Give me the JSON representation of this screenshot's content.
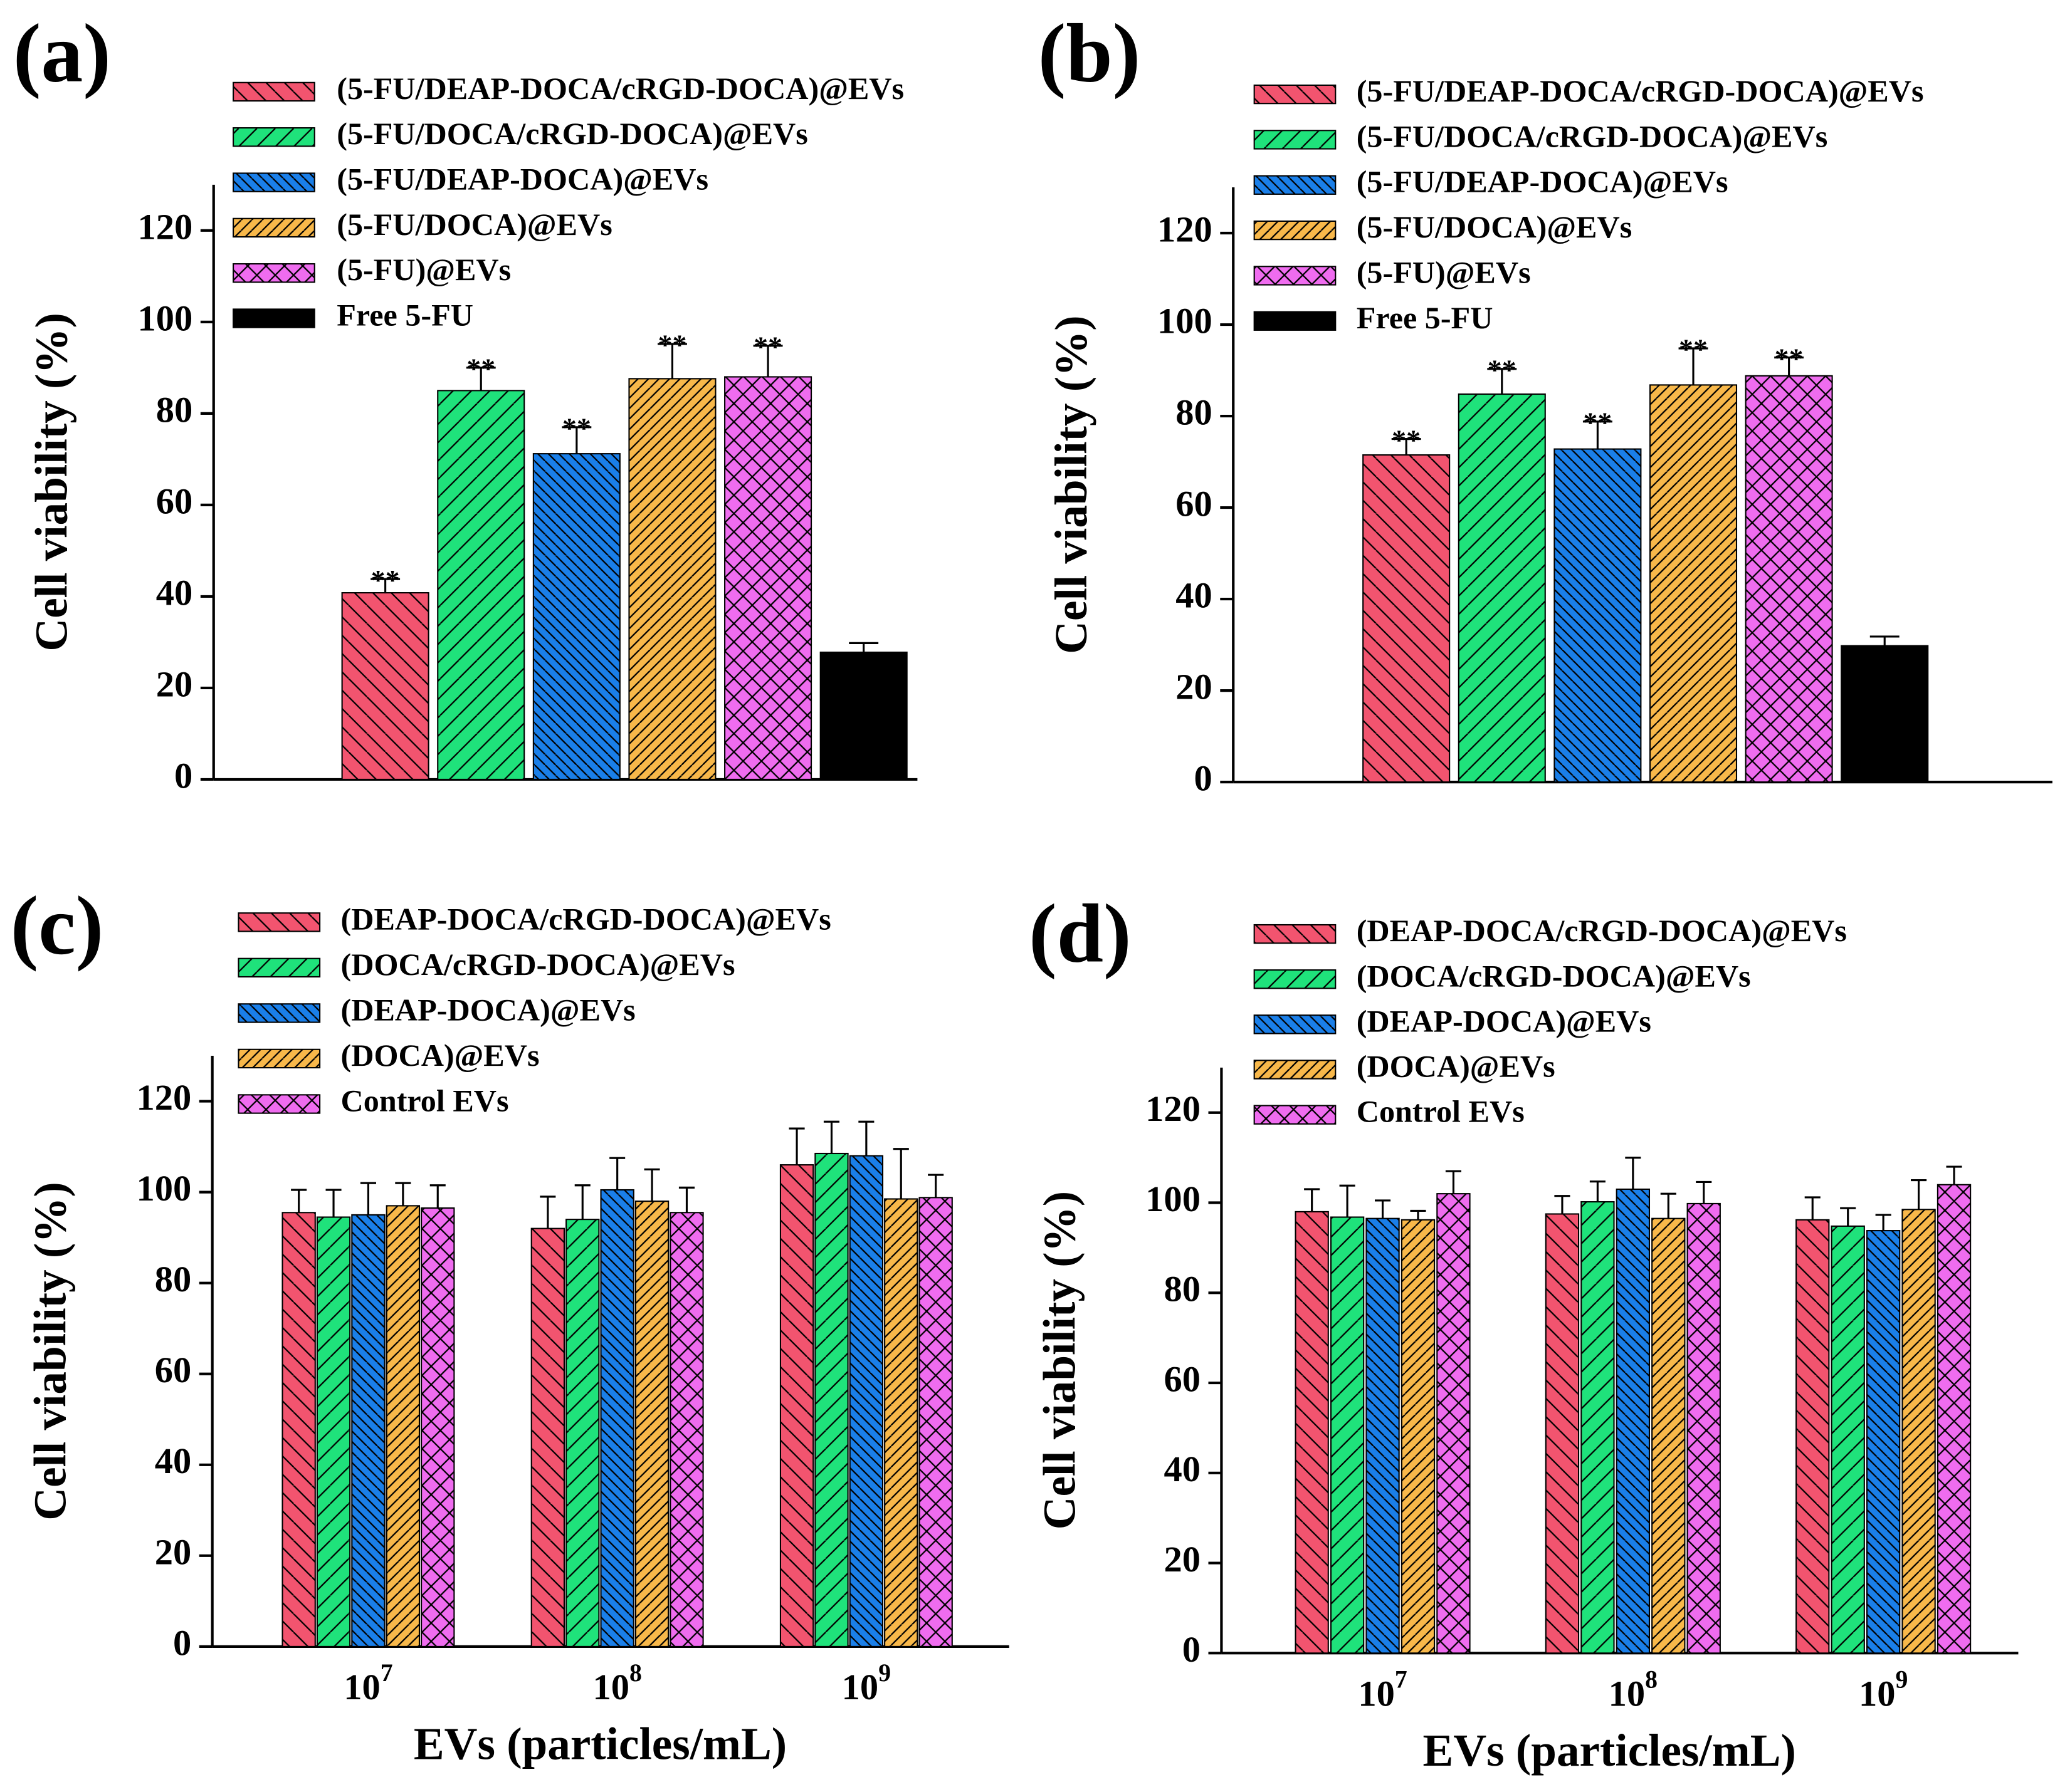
{
  "chart_data": [
    {
      "type": "bar",
      "label": "(a)",
      "ylabel": "Cell viability (%)",
      "categories": [
        null
      ],
      "ylim": [
        0,
        130
      ],
      "yticks": [
        0,
        20,
        40,
        60,
        80,
        100,
        120
      ],
      "series": [
        {
          "name": "(5-FU/DEAP-DOCA/cRGD-DOCA)@EVs",
          "color": "#f2546f",
          "hatch": "back",
          "values": [
            40.8
          ],
          "errors": [
            3
          ],
          "annotations": [
            "**"
          ]
        },
        {
          "name": "(5-FU/DOCA/cRGD-DOCA)@EVs",
          "color": "#1fe27b",
          "hatch": "fwd",
          "values": [
            85
          ],
          "errors": [
            5
          ],
          "annotations": [
            "**"
          ]
        },
        {
          "name": "(5-FU/DEAP-DOCA)@EVs",
          "color": "#1a7fe9",
          "hatch": "back-dense",
          "values": [
            71.2
          ],
          "errors": [
            5.8
          ],
          "annotations": [
            "**"
          ]
        },
        {
          "name": "(5-FU/DOCA)@EVs",
          "color": "#f8b84a",
          "hatch": "fwd-dense",
          "values": [
            87.6
          ],
          "errors": [
            7.6
          ],
          "annotations": [
            "**"
          ]
        },
        {
          "name": "(5-FU)@EVs",
          "color": "#ef6cef",
          "hatch": "cross",
          "values": [
            88
          ],
          "errors": [
            6.8
          ],
          "annotations": [
            "**"
          ]
        },
        {
          "name": "Free 5-FU",
          "color": "#000000",
          "hatch": "none",
          "values": [
            27.8
          ],
          "errors": [
            2
          ]
        }
      ]
    },
    {
      "type": "bar",
      "label": "(b)",
      "ylabel": "Cell viability (%)",
      "categories": [
        null
      ],
      "ylim": [
        0,
        130
      ],
      "yticks": [
        0,
        20,
        40,
        60,
        80,
        100,
        120
      ],
      "series": [
        {
          "name": "(5-FU/DEAP-DOCA/cRGD-DOCA)@EVs",
          "color": "#f2546f",
          "hatch": "back",
          "values": [
            71.5
          ],
          "errors": [
            3.5
          ],
          "annotations": [
            "**"
          ]
        },
        {
          "name": "(5-FU/DOCA/cRGD-DOCA)@EVs",
          "color": "#1fe27b",
          "hatch": "fwd",
          "values": [
            84.8
          ],
          "errors": [
            5.5
          ],
          "annotations": [
            "**"
          ]
        },
        {
          "name": "(5-FU/DEAP-DOCA)@EVs",
          "color": "#1a7fe9",
          "hatch": "back-dense",
          "values": [
            72.8
          ],
          "errors": [
            6
          ],
          "annotations": [
            "**"
          ]
        },
        {
          "name": "(5-FU/DOCA)@EVs",
          "color": "#f8b84a",
          "hatch": "fwd-dense",
          "values": [
            86.8
          ],
          "errors": [
            8
          ],
          "annotations": [
            "**"
          ]
        },
        {
          "name": "(5-FU)@EVs",
          "color": "#ef6cef",
          "hatch": "cross",
          "values": [
            88.8
          ],
          "errors": [
            4
          ],
          "annotations": [
            "**"
          ]
        },
        {
          "name": "Free 5-FU",
          "color": "#000000",
          "hatch": "none",
          "values": [
            29.8
          ],
          "errors": [
            2
          ]
        }
      ]
    },
    {
      "type": "bar",
      "label": "(c)",
      "ylabel": "Cell viability (%)",
      "xlabel": "EVs (particles/mL)",
      "categories": [
        {
          "base": "10",
          "exponent": "7"
        },
        {
          "base": "10",
          "exponent": "8"
        },
        {
          "base": "10",
          "exponent": "9"
        }
      ],
      "ylim": [
        0,
        130
      ],
      "yticks": [
        0,
        20,
        40,
        60,
        80,
        100,
        120
      ],
      "series": [
        {
          "name": "(DEAP-DOCA/cRGD-DOCA)@EVs",
          "color": "#f2546f",
          "hatch": "back",
          "values": [
            95.5,
            92,
            106
          ],
          "errors": [
            5,
            7,
            8
          ]
        },
        {
          "name": "(DOCA/cRGD-DOCA)@EVs",
          "color": "#1fe27b",
          "hatch": "fwd",
          "values": [
            94.5,
            94,
            108.5
          ],
          "errors": [
            6,
            7.5,
            7
          ]
        },
        {
          "name": "(DEAP-DOCA)@EVs",
          "color": "#1a7fe9",
          "hatch": "back-dense",
          "values": [
            95,
            100.5,
            108
          ],
          "errors": [
            7,
            7,
            7.5
          ]
        },
        {
          "name": "(DOCA)@EVs",
          "color": "#f8b84a",
          "hatch": "fwd-dense",
          "values": [
            97,
            98,
            98.5
          ],
          "errors": [
            5,
            7,
            11
          ]
        },
        {
          "name": "Control EVs",
          "color": "#ef6cef",
          "hatch": "cross",
          "values": [
            96.5,
            95.5,
            98.8
          ],
          "errors": [
            5,
            5.5,
            5
          ]
        }
      ]
    },
    {
      "type": "bar",
      "label": "(d)",
      "ylabel": "Cell viability (%)",
      "xlabel": "EVs (particles/mL)",
      "categories": [
        {
          "base": "10",
          "exponent": "7"
        },
        {
          "base": "10",
          "exponent": "8"
        },
        {
          "base": "10",
          "exponent": "9"
        }
      ],
      "ylim": [
        0,
        130
      ],
      "yticks": [
        0,
        20,
        40,
        60,
        80,
        100,
        120
      ],
      "series": [
        {
          "name": "(DEAP-DOCA/cRGD-DOCA)@EVs",
          "color": "#f2546f",
          "hatch": "back",
          "values": [
            98,
            97.5,
            96.2
          ],
          "errors": [
            5,
            4,
            5
          ]
        },
        {
          "name": "(DOCA/cRGD-DOCA)@EVs",
          "color": "#1fe27b",
          "hatch": "fwd",
          "values": [
            96.8,
            100.2,
            94.8
          ],
          "errors": [
            7,
            4.5,
            4
          ]
        },
        {
          "name": "(DEAP-DOCA)@EVs",
          "color": "#1a7fe9",
          "hatch": "back-dense",
          "values": [
            96.5,
            103,
            93.8
          ],
          "errors": [
            4,
            7,
            3.5
          ]
        },
        {
          "name": "(DOCA)@EVs",
          "color": "#f8b84a",
          "hatch": "fwd-dense",
          "values": [
            96.2,
            96.5,
            98.5
          ],
          "errors": [
            2,
            5.5,
            6.5
          ]
        },
        {
          "name": "Control EVs",
          "color": "#ef6cef",
          "hatch": "cross",
          "values": [
            102,
            99.8,
            104
          ],
          "errors": [
            5,
            4.8,
            4
          ]
        }
      ]
    }
  ]
}
